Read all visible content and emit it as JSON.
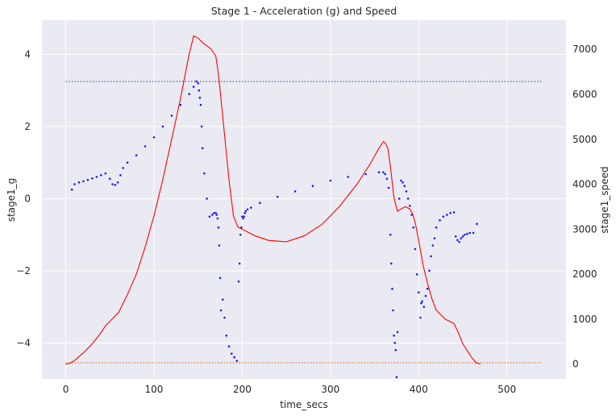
{
  "chart_data": {
    "type": "line",
    "title": "Stage 1 - Acceleration (g) and Speed",
    "xlabel": "time_secs",
    "ylabel_left": "stage1_g",
    "ylabel_right": "stage1_speed",
    "xlim": [
      -27,
      567
    ],
    "ylim_left": [
      -5.0,
      4.95
    ],
    "ylim_right": [
      -330,
      7650
    ],
    "x_ticks": [
      0,
      100,
      200,
      300,
      400,
      500
    ],
    "y_left_ticks": [
      -4,
      -2,
      0,
      2,
      4
    ],
    "y_right_ticks": [
      0,
      1000,
      2000,
      3000,
      4000,
      5000,
      6000,
      7000
    ],
    "x_tick_labels": [
      "0",
      "100",
      "200",
      "300",
      "400",
      "500"
    ],
    "y_left_tick_labels": [
      "−4",
      "−2",
      "0",
      "2",
      "4"
    ],
    "y_right_tick_labels": [
      "0",
      "1000",
      "2000",
      "3000",
      "4000",
      "5000",
      "6000",
      "7000"
    ],
    "grid": true,
    "colors": {
      "background": "#eaeaf2",
      "grid": "#ffffff",
      "g_series": "#0000ff",
      "speed_series": "#ff0000",
      "g_reference": "#4c72b0",
      "speed_reference": "#dd8452"
    },
    "series": [
      {
        "axis": "left",
        "style": "dots",
        "x": [
          7,
          10,
          15,
          20,
          25,
          30,
          35,
          40,
          45,
          50,
          53,
          56,
          59,
          62,
          65,
          70,
          80,
          90,
          100,
          110,
          120,
          130,
          140,
          145,
          148,
          150,
          151,
          152,
          153,
          154,
          155,
          157,
          160,
          163,
          166,
          168,
          170,
          171,
          172,
          173,
          174,
          175,
          176,
          178,
          180,
          182,
          185,
          188,
          191,
          194,
          196,
          197,
          198,
          199,
          200,
          201,
          202,
          203,
          204,
          206,
          210,
          220,
          240,
          260,
          280,
          300,
          320,
          340,
          355,
          360,
          362,
          364,
          366,
          368,
          369,
          370,
          371,
          372,
          373,
          374,
          375,
          376,
          378,
          380,
          382,
          384,
          386,
          388,
          390,
          392,
          394,
          396,
          398,
          400,
          402,
          403,
          404,
          406,
          408,
          410,
          412,
          414,
          416,
          418,
          420,
          424,
          428,
          432,
          436,
          440,
          442,
          444,
          446,
          448,
          450,
          452,
          455,
          458,
          462,
          466
        ],
        "y": [
          0.25,
          0.4,
          0.45,
          0.48,
          0.52,
          0.56,
          0.6,
          0.65,
          0.7,
          0.55,
          0.4,
          0.38,
          0.45,
          0.65,
          0.85,
          1.0,
          1.2,
          1.45,
          1.7,
          2.0,
          2.3,
          2.6,
          2.9,
          3.1,
          3.25,
          3.2,
          3.0,
          2.8,
          2.6,
          2.0,
          1.4,
          0.7,
          0.0,
          -0.5,
          -0.45,
          -0.4,
          -0.4,
          -0.45,
          -0.55,
          -0.8,
          -1.3,
          -2.2,
          -3.1,
          -2.8,
          -3.3,
          -3.8,
          -4.1,
          -4.3,
          -4.4,
          -4.5,
          -2.3,
          -1.8,
          -1.0,
          -0.8,
          -0.5,
          -0.55,
          -0.5,
          -0.4,
          -0.35,
          -0.3,
          -0.25,
          -0.12,
          0.05,
          0.2,
          0.35,
          0.5,
          0.6,
          0.68,
          0.73,
          0.73,
          0.68,
          0.55,
          0.3,
          -1.0,
          -1.8,
          -2.5,
          -3.1,
          -3.8,
          -4.0,
          -4.2,
          -4.95,
          -3.7,
          0.0,
          0.5,
          0.45,
          0.35,
          0.2,
          0.0,
          -0.2,
          -0.45,
          -0.8,
          -1.4,
          -2.1,
          -2.6,
          -3.3,
          -2.9,
          -2.85,
          -3.0,
          -2.7,
          -2.5,
          -2.0,
          -1.6,
          -1.3,
          -1.1,
          -0.8,
          -0.6,
          -0.5,
          -0.45,
          -0.4,
          -0.38,
          -1.05,
          -1.15,
          -1.2,
          -1.1,
          -1.05,
          -1.0,
          -0.98,
          -0.95,
          -0.95,
          -0.7
        ]
      },
      {
        "axis": "right",
        "style": "line",
        "x": [
          0,
          5,
          10,
          20,
          30,
          40,
          45,
          50,
          55,
          60,
          70,
          80,
          90,
          100,
          110,
          120,
          130,
          140,
          145,
          150,
          155,
          160,
          165,
          170,
          172,
          175,
          180,
          185,
          190,
          195,
          200,
          205,
          215,
          230,
          250,
          270,
          290,
          310,
          330,
          345,
          355,
          360,
          362,
          365,
          368,
          372,
          376,
          380,
          385,
          390,
          393,
          396,
          400,
          405,
          410,
          415,
          420,
          430,
          440,
          445,
          450,
          460,
          465,
          470
        ],
        "y": [
          0,
          20,
          80,
          250,
          450,
          700,
          850,
          950,
          1050,
          1150,
          1550,
          2000,
          2600,
          3300,
          4100,
          5000,
          5900,
          6900,
          7300,
          7250,
          7150,
          7080,
          7000,
          6850,
          6600,
          6100,
          5100,
          4100,
          3300,
          3050,
          3000,
          2950,
          2850,
          2750,
          2720,
          2850,
          3100,
          3500,
          4000,
          4450,
          4800,
          4950,
          4920,
          4800,
          4400,
          3700,
          3400,
          3450,
          3500,
          3450,
          3350,
          3150,
          2750,
          2200,
          1800,
          1450,
          1200,
          1000,
          900,
          700,
          450,
          150,
          30,
          0
        ]
      },
      {
        "axis": "left",
        "style": "dotted-reference",
        "x": [
          0,
          540
        ],
        "y": [
          3.25,
          3.25
        ]
      },
      {
        "axis": "right",
        "style": "dotted-reference",
        "x": [
          0,
          540
        ],
        "y": [
          30,
          30
        ]
      }
    ]
  }
}
